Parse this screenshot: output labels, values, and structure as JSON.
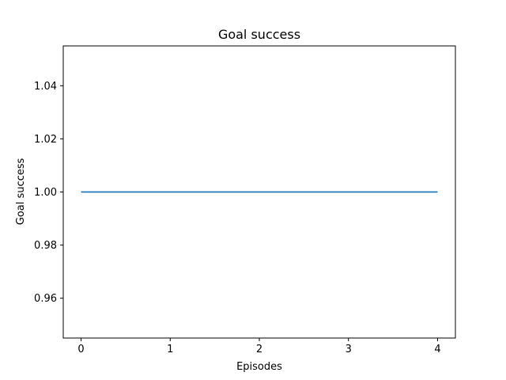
{
  "chart_data": {
    "type": "line",
    "title": "Goal success",
    "xlabel": "Episodes",
    "ylabel": "Goal success",
    "x": [
      0,
      1,
      2,
      3,
      4
    ],
    "series": [
      {
        "values": [
          1.0,
          1.0,
          1.0,
          1.0,
          1.0
        ],
        "color": "#1f77b4"
      }
    ],
    "xlim": [
      -0.2,
      4.2
    ],
    "ylim": [
      0.945,
      1.055
    ],
    "xticks": [
      0,
      1,
      2,
      3,
      4
    ],
    "xtick_labels": [
      "0",
      "1",
      "2",
      "3",
      "4"
    ],
    "yticks": [
      0.96,
      0.98,
      1.0,
      1.02,
      1.04
    ],
    "ytick_labels": [
      "0.96",
      "0.98",
      "1.00",
      "1.02",
      "1.04"
    ],
    "grid": false,
    "legend": "none"
  }
}
